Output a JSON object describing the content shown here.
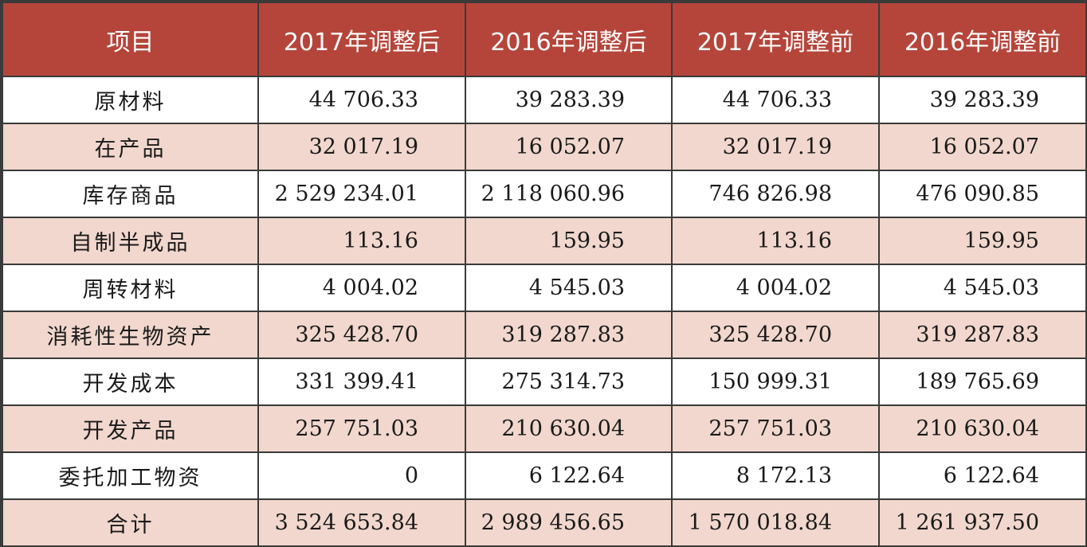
{
  "header": {
    "item": "项目",
    "col1": "2017年调整后",
    "col2": "2016年调整后",
    "col3": "2017年调整前",
    "col4": "2016年调整前"
  },
  "rows": [
    {
      "item": "原材料",
      "v2017_after": "44 706.33",
      "v2016_after": "39 283.39",
      "v2017_before": "44 706.33",
      "v2016_before": "39 283.39"
    },
    {
      "item": "在产品",
      "v2017_after": "32 017.19",
      "v2016_after": "16 052.07",
      "v2017_before": "32 017.19",
      "v2016_before": "16 052.07"
    },
    {
      "item": "库存商品",
      "v2017_after": "2 529 234.01",
      "v2016_after": "2 118 060.96",
      "v2017_before": "746 826.98",
      "v2016_before": "476 090.85"
    },
    {
      "item": "自制半成品",
      "v2017_after": "113.16",
      "v2016_after": "159.95",
      "v2017_before": "113.16",
      "v2016_before": "159.95"
    },
    {
      "item": "周转材料",
      "v2017_after": "4 004.02",
      "v2016_after": "4 545.03",
      "v2017_before": "4 004.02",
      "v2016_before": "4 545.03"
    },
    {
      "item": "消耗性生物资产",
      "v2017_after": "325 428.70",
      "v2016_after": "319 287.83",
      "v2017_before": "325 428.70",
      "v2016_before": "319 287.83"
    },
    {
      "item": "开发成本",
      "v2017_after": "331 399.41",
      "v2016_after": "275 314.73",
      "v2017_before": "150 999.31",
      "v2016_before": "189 765.69"
    },
    {
      "item": "开发产品",
      "v2017_after": "257 751.03",
      "v2016_after": "210 630.04",
      "v2017_before": "257 751.03",
      "v2016_before": "210 630.04"
    },
    {
      "item": "委托加工物资",
      "v2017_after": "0",
      "v2016_after": "6 122.64",
      "v2017_before": "8 172.13",
      "v2016_before": "6 122.64"
    },
    {
      "item": "合计",
      "v2017_after": "3 524 653.84",
      "v2016_after": "2 989 456.65",
      "v2017_before": "1 570 018.84",
      "v2016_before": "1 261 937.50"
    }
  ],
  "colors": {
    "header_bg": "#b5453a",
    "header_text": "#ffffff",
    "row_odd_bg": "#ffffff",
    "row_even_bg": "#f1d7cd",
    "border": "#3a3a3a"
  }
}
